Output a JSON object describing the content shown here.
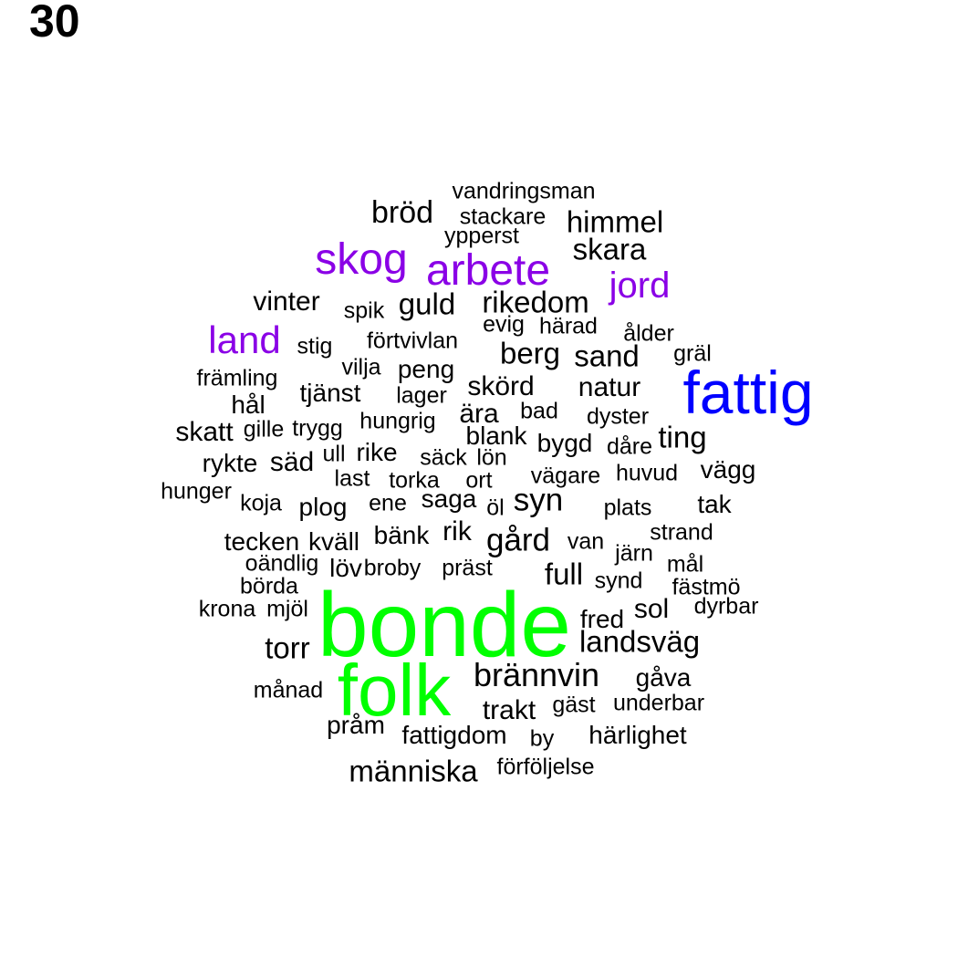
{
  "panel_number": "30",
  "colors": {
    "largest": "#00ff00",
    "large": "#0000ff",
    "medium": "#8a00e6",
    "default": "#000000"
  },
  "words": [
    {
      "text": "bonde",
      "tier": "largest"
    },
    {
      "text": "folk",
      "tier": "largest"
    },
    {
      "text": "fattig",
      "tier": "large"
    },
    {
      "text": "skog",
      "tier": "medium"
    },
    {
      "text": "arbete",
      "tier": "medium"
    },
    {
      "text": "jord",
      "tier": "medium"
    },
    {
      "text": "land",
      "tier": "medium"
    },
    {
      "text": "vandringsman"
    },
    {
      "text": "bröd"
    },
    {
      "text": "stackare"
    },
    {
      "text": "himmel"
    },
    {
      "text": "ypperst"
    },
    {
      "text": "skara"
    },
    {
      "text": "vinter"
    },
    {
      "text": "spik"
    },
    {
      "text": "guld"
    },
    {
      "text": "rikedom"
    },
    {
      "text": "evig"
    },
    {
      "text": "härad"
    },
    {
      "text": "ålder"
    },
    {
      "text": "stig"
    },
    {
      "text": "förtvivlan"
    },
    {
      "text": "berg"
    },
    {
      "text": "sand"
    },
    {
      "text": "gräl"
    },
    {
      "text": "vilja"
    },
    {
      "text": "peng"
    },
    {
      "text": "främling"
    },
    {
      "text": "tjänst"
    },
    {
      "text": "skörd"
    },
    {
      "text": "natur"
    },
    {
      "text": "lager"
    },
    {
      "text": "hål"
    },
    {
      "text": "ära"
    },
    {
      "text": "bad"
    },
    {
      "text": "dyster"
    },
    {
      "text": "hungrig"
    },
    {
      "text": "skatt"
    },
    {
      "text": "gille"
    },
    {
      "text": "trygg"
    },
    {
      "text": "blank"
    },
    {
      "text": "ting"
    },
    {
      "text": "bygd"
    },
    {
      "text": "ull"
    },
    {
      "text": "rike"
    },
    {
      "text": "dåre"
    },
    {
      "text": "rykte"
    },
    {
      "text": "säd"
    },
    {
      "text": "säck"
    },
    {
      "text": "lön"
    },
    {
      "text": "vägg"
    },
    {
      "text": "huvud"
    },
    {
      "text": "last"
    },
    {
      "text": "torka"
    },
    {
      "text": "ort"
    },
    {
      "text": "vägare"
    },
    {
      "text": "hunger"
    },
    {
      "text": "saga"
    },
    {
      "text": "syn"
    },
    {
      "text": "koja"
    },
    {
      "text": "plog"
    },
    {
      "text": "ene"
    },
    {
      "text": "öl"
    },
    {
      "text": "plats"
    },
    {
      "text": "tak"
    },
    {
      "text": "tecken"
    },
    {
      "text": "kväll"
    },
    {
      "text": "bänk"
    },
    {
      "text": "rik"
    },
    {
      "text": "gård"
    },
    {
      "text": "strand"
    },
    {
      "text": "van"
    },
    {
      "text": "järn"
    },
    {
      "text": "oändlig"
    },
    {
      "text": "löv"
    },
    {
      "text": "broby"
    },
    {
      "text": "präst"
    },
    {
      "text": "mål"
    },
    {
      "text": "full"
    },
    {
      "text": "synd"
    },
    {
      "text": "börda"
    },
    {
      "text": "fästmö"
    },
    {
      "text": "krona"
    },
    {
      "text": "mjöl"
    },
    {
      "text": "sol"
    },
    {
      "text": "dyrbar"
    },
    {
      "text": "fred"
    },
    {
      "text": "landsväg"
    },
    {
      "text": "torr"
    },
    {
      "text": "brännvin"
    },
    {
      "text": "månad"
    },
    {
      "text": "gåva"
    },
    {
      "text": "trakt"
    },
    {
      "text": "gäst"
    },
    {
      "text": "underbar"
    },
    {
      "text": "pråm"
    },
    {
      "text": "fattigdom"
    },
    {
      "text": "by"
    },
    {
      "text": "härlighet"
    },
    {
      "text": "människa"
    },
    {
      "text": "förföljelse"
    }
  ]
}
